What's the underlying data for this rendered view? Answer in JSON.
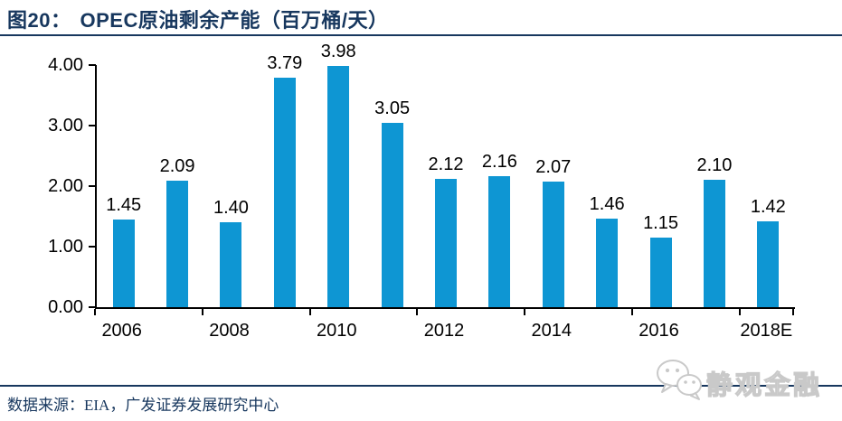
{
  "header": {
    "figure_label": "图20：",
    "title": "OPEC原油剩余产能（百万桶/天）"
  },
  "chart_data": {
    "type": "bar",
    "title": "OPEC原油剩余产能（百万桶/天）",
    "categories": [
      "2006",
      "2007",
      "2008",
      "2009",
      "2010",
      "2011",
      "2012",
      "2013",
      "2014",
      "2015",
      "2016",
      "2017",
      "2018E"
    ],
    "values": [
      1.45,
      2.09,
      1.4,
      3.79,
      3.98,
      3.05,
      2.12,
      2.16,
      2.07,
      1.46,
      1.15,
      2.1,
      1.42
    ],
    "data_labels": [
      "1.45",
      "2.09",
      "1.40",
      "3.79",
      "3.98",
      "3.05",
      "2.12",
      "2.16",
      "2.07",
      "1.46",
      "1.15",
      "2.10",
      "1.42"
    ],
    "x_tick_labels": [
      "2006",
      "2008",
      "2010",
      "2012",
      "2014",
      "2016",
      "2018E"
    ],
    "x_label_indices": [
      0,
      2,
      4,
      6,
      8,
      10,
      12
    ],
    "y_ticks": [
      "4.00",
      "3.00",
      "2.00",
      "1.00",
      "0.00"
    ],
    "ylim": [
      0,
      4
    ],
    "xlabel": "",
    "ylabel": "",
    "grid": false,
    "legend": "none",
    "bar_color": "#0E96D3",
    "axis_color": "#000000",
    "label_color": "#000000"
  },
  "footer": {
    "source": "数据来源：EIA，广发证券发展研究中心"
  },
  "watermark": {
    "icon": "wechat-icon",
    "text": "静观金融"
  },
  "colors": {
    "accent_navy": "#17375E",
    "bar_blue": "#0E96D3",
    "watermark_gray": "#C9C9C9"
  }
}
